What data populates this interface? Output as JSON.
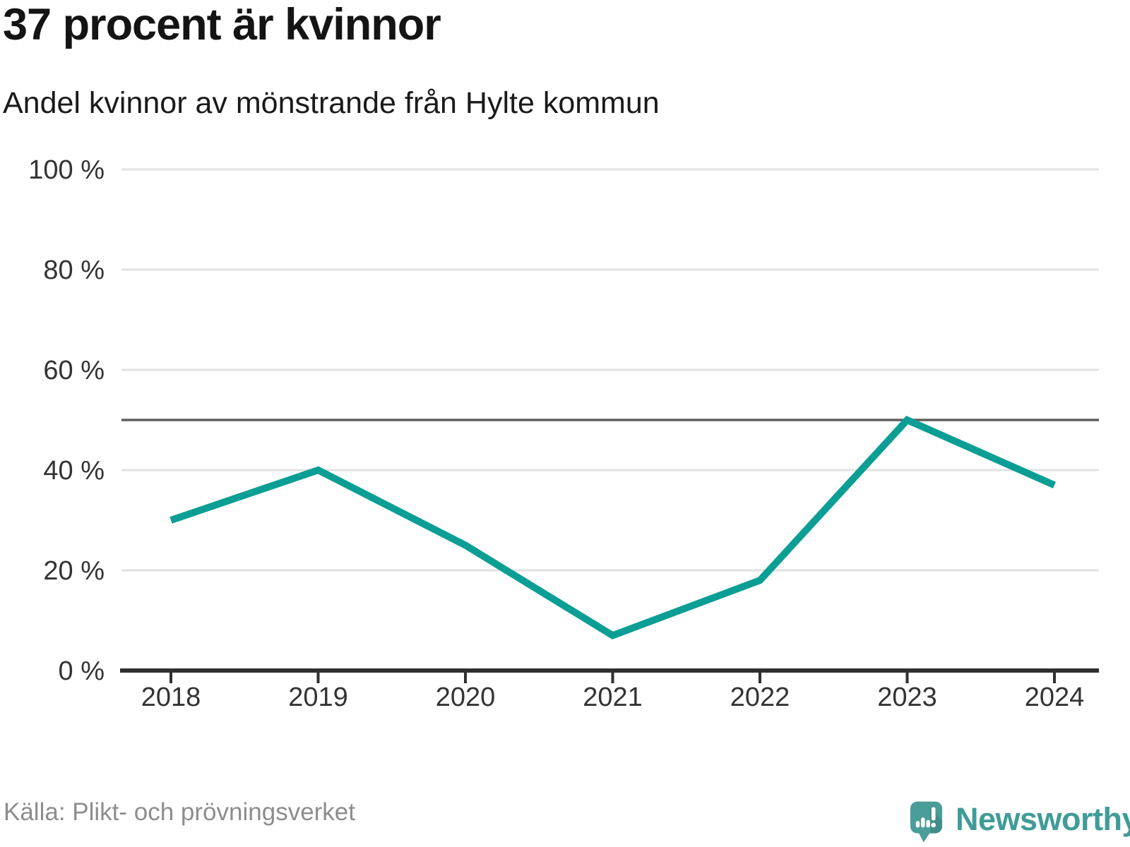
{
  "header": {
    "title": "37 procent är kvinnor",
    "subtitle": "Andel kvinnor av mönstrande från Hylte kommun"
  },
  "footer": {
    "source": "Källa: Plikt- och prövningsverket",
    "brand_name": "Newsworthy",
    "logo_icon": "newsworthy-speech-bubble-bar-chart-icon"
  },
  "colors": {
    "line": "#0b9e94",
    "reference_line": "#5f5f5f",
    "grid": "#e2e2e2",
    "axis": "#2f2f2f",
    "tick_label": "#333333",
    "source_text": "#8d8d8d",
    "brand_teal": "#3f9c98",
    "logo_bg": "#4a9d99"
  },
  "chart_data": {
    "type": "line",
    "title": "37 procent är kvinnor",
    "subtitle": "Andel kvinnor av mönstrande från Hylte kommun",
    "categories": [
      "2018",
      "2019",
      "2020",
      "2021",
      "2022",
      "2023",
      "2024"
    ],
    "values": [
      30,
      40,
      25,
      7,
      18,
      50,
      37
    ],
    "series_name": "Andel kvinnor av mönstrande",
    "unit": "%",
    "xlabel": "",
    "ylabel": "",
    "ylim": [
      0,
      100
    ],
    "yticks": [
      0,
      20,
      40,
      60,
      80,
      100
    ],
    "ytick_labels": [
      "0 %",
      "20 %",
      "40 %",
      "60 %",
      "80 %",
      "100 %"
    ],
    "reference_line": 50,
    "grid": true,
    "legend": false
  }
}
